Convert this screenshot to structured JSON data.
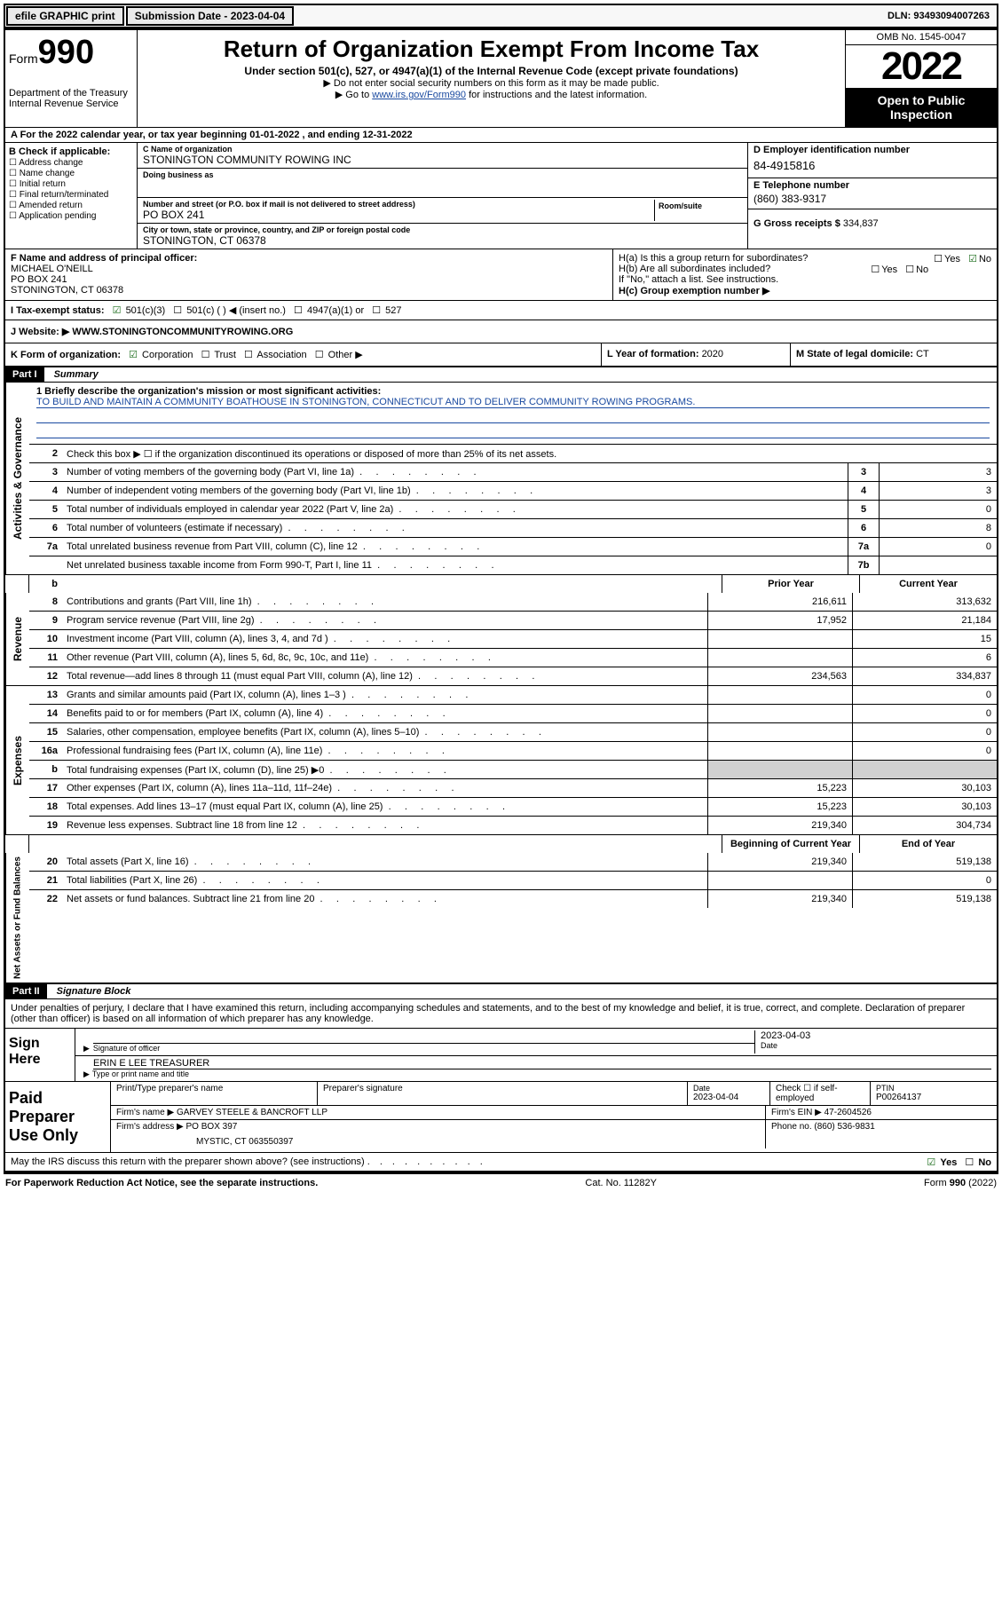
{
  "topbar": {
    "efile": "efile GRAPHIC print",
    "subdate_label": "Submission Date - ",
    "subdate": "2023-04-04",
    "dln_label": "DLN: ",
    "dln": "93493094007263"
  },
  "header": {
    "form_prefix": "Form",
    "form_number": "990",
    "dept": "Department of the Treasury\nInternal Revenue Service",
    "title": "Return of Organization Exempt From Income Tax",
    "subtitle": "Under section 501(c), 527, or 4947(a)(1) of the Internal Revenue Code (except private foundations)",
    "line1": "▶ Do not enter social security numbers on this form as it may be made public.",
    "line2_pre": "▶ Go to ",
    "line2_link": "www.irs.gov/Form990",
    "line2_post": " for instructions and the latest information.",
    "omb": "OMB No. 1545-0047",
    "year": "2022",
    "inspect": "Open to Public Inspection"
  },
  "rowA": "A For the 2022 calendar year, or tax year beginning 01-01-2022   , and ending 12-31-2022",
  "colB": {
    "header": "B Check if applicable:",
    "items": [
      "Address change",
      "Name change",
      "Initial return",
      "Final return/terminated",
      "Amended return",
      "Application pending"
    ]
  },
  "colC": {
    "name_label": "C Name of organization",
    "name": "STONINGTON COMMUNITY ROWING INC",
    "dba_label": "Doing business as",
    "dba": "",
    "addr_label": "Number and street (or P.O. box if mail is not delivered to street address)",
    "room_label": "Room/suite",
    "addr": "PO BOX 241",
    "city_label": "City or town, state or province, country, and ZIP or foreign postal code",
    "city": "STONINGTON, CT  06378"
  },
  "colD": {
    "ein_label": "D Employer identification number",
    "ein": "84-4915816",
    "phone_label": "E Telephone number",
    "phone": "(860) 383-9317",
    "gross_label": "G Gross receipts $ ",
    "gross": "334,837"
  },
  "secF": {
    "label": "F Name and address of principal officer:",
    "name": "MICHAEL O'NEILL",
    "addr1": "PO BOX 241",
    "addr2": "STONINGTON, CT  06378"
  },
  "secH": {
    "a": "H(a)  Is this a group return for subordinates?",
    "a_yes": "Yes",
    "a_no_checked": "No",
    "b": "H(b)  Are all subordinates included?",
    "b_yes": "Yes",
    "b_no": "No",
    "b_note": "If \"No,\" attach a list. See instructions.",
    "c": "H(c)  Group exemption number ▶"
  },
  "secI": {
    "label": "I   Tax-exempt status:",
    "opts": [
      "501(c)(3)",
      "501(c) (  ) ◀ (insert no.)",
      "4947(a)(1) or",
      "527"
    ]
  },
  "secJ": {
    "label": "J   Website: ▶ ",
    "value": "WWW.STONINGTONCOMMUNITYROWING.ORG"
  },
  "secK": {
    "label": "K Form of organization:",
    "opts": [
      "Corporation",
      "Trust",
      "Association",
      "Other ▶"
    ]
  },
  "secL": {
    "label": "L Year of formation: ",
    "value": "2020"
  },
  "secM": {
    "label": "M State of legal domicile: ",
    "value": "CT"
  },
  "part1": {
    "header": "Part I",
    "title": "Summary",
    "mission_label": "1   Briefly describe the organization's mission or most significant activities:",
    "mission": "TO BUILD AND MAINTAIN A COMMUNITY BOATHOUSE IN STONINGTON, CONNECTICUT AND TO DELIVER COMMUNITY ROWING PROGRAMS.",
    "line2": "Check this box ▶ ☐  if the organization discontinued its operations or disposed of more than 25% of its net assets."
  },
  "sidelabels": {
    "gov": "Activities & Governance",
    "rev": "Revenue",
    "exp": "Expenses",
    "net": "Net Assets or Fund Balances"
  },
  "gov_rows": [
    {
      "num": "3",
      "desc": "Number of voting members of the governing body (Part VI, line 1a)",
      "box": "3",
      "val": "3"
    },
    {
      "num": "4",
      "desc": "Number of independent voting members of the governing body (Part VI, line 1b)",
      "box": "4",
      "val": "3"
    },
    {
      "num": "5",
      "desc": "Total number of individuals employed in calendar year 2022 (Part V, line 2a)",
      "box": "5",
      "val": "0"
    },
    {
      "num": "6",
      "desc": "Total number of volunteers (estimate if necessary)",
      "box": "6",
      "val": "8"
    },
    {
      "num": "7a",
      "desc": "Total unrelated business revenue from Part VIII, column (C), line 12",
      "box": "7a",
      "val": "0"
    },
    {
      "num": "",
      "desc": "Net unrelated business taxable income from Form 990-T, Part I, line 11",
      "box": "7b",
      "val": ""
    }
  ],
  "twocol_header": {
    "prior": "Prior Year",
    "current": "Current Year"
  },
  "rev_rows": [
    {
      "num": "8",
      "desc": "Contributions and grants (Part VIII, line 1h)",
      "prior": "216,611",
      "cur": "313,632"
    },
    {
      "num": "9",
      "desc": "Program service revenue (Part VIII, line 2g)",
      "prior": "17,952",
      "cur": "21,184"
    },
    {
      "num": "10",
      "desc": "Investment income (Part VIII, column (A), lines 3, 4, and 7d )",
      "prior": "",
      "cur": "15"
    },
    {
      "num": "11",
      "desc": "Other revenue (Part VIII, column (A), lines 5, 6d, 8c, 9c, 10c, and 11e)",
      "prior": "",
      "cur": "6"
    },
    {
      "num": "12",
      "desc": "Total revenue—add lines 8 through 11 (must equal Part VIII, column (A), line 12)",
      "prior": "234,563",
      "cur": "334,837"
    }
  ],
  "exp_rows": [
    {
      "num": "13",
      "desc": "Grants and similar amounts paid (Part IX, column (A), lines 1–3 )",
      "prior": "",
      "cur": "0"
    },
    {
      "num": "14",
      "desc": "Benefits paid to or for members (Part IX, column (A), line 4)",
      "prior": "",
      "cur": "0"
    },
    {
      "num": "15",
      "desc": "Salaries, other compensation, employee benefits (Part IX, column (A), lines 5–10)",
      "prior": "",
      "cur": "0"
    },
    {
      "num": "16a",
      "desc": "Professional fundraising fees (Part IX, column (A), line 11e)",
      "prior": "",
      "cur": "0"
    },
    {
      "num": "b",
      "desc": "Total fundraising expenses (Part IX, column (D), line 25) ▶0",
      "prior": "GREY",
      "cur": "GREY"
    },
    {
      "num": "17",
      "desc": "Other expenses (Part IX, column (A), lines 11a–11d, 11f–24e)",
      "prior": "15,223",
      "cur": "30,103"
    },
    {
      "num": "18",
      "desc": "Total expenses. Add lines 13–17 (must equal Part IX, column (A), line 25)",
      "prior": "15,223",
      "cur": "30,103"
    },
    {
      "num": "19",
      "desc": "Revenue less expenses. Subtract line 18 from line 12",
      "prior": "219,340",
      "cur": "304,734"
    }
  ],
  "net_header": {
    "prior": "Beginning of Current Year",
    "current": "End of Year"
  },
  "net_rows": [
    {
      "num": "20",
      "desc": "Total assets (Part X, line 16)",
      "prior": "219,340",
      "cur": "519,138"
    },
    {
      "num": "21",
      "desc": "Total liabilities (Part X, line 26)",
      "prior": "",
      "cur": "0"
    },
    {
      "num": "22",
      "desc": "Net assets or fund balances. Subtract line 21 from line 20",
      "prior": "219,340",
      "cur": "519,138"
    }
  ],
  "part2": {
    "header": "Part II",
    "title": "Signature Block",
    "decl": "Under penalties of perjury, I declare that I have examined this return, including accompanying schedules and statements, and to the best of my knowledge and belief, it is true, correct, and complete. Declaration of preparer (other than officer) is based on all information of which preparer has any knowledge."
  },
  "sign": {
    "here": "Sign Here",
    "sig_label": "Signature of officer",
    "date_label": "Date",
    "date": "2023-04-03",
    "name_title": "ERIN E LEE  TREASURER",
    "name_label": "Type or print name and title"
  },
  "paid": {
    "label": "Paid Preparer Use Only",
    "col1": "Print/Type preparer's name",
    "col2": "Preparer's signature",
    "col3_label": "Date",
    "col3": "2023-04-04",
    "col4": "Check ☐ if self-employed",
    "col5_label": "PTIN",
    "col5": "P00264137",
    "firm_name_label": "Firm's name    ▶ ",
    "firm_name": "GARVEY STEELE & BANCROFT LLP",
    "firm_ein_label": "Firm's EIN ▶ ",
    "firm_ein": "47-2604526",
    "firm_addr_label": "Firm's address ▶ ",
    "firm_addr1": "PO BOX 397",
    "firm_addr2": "MYSTIC, CT  063550397",
    "phone_label": "Phone no. ",
    "phone": "(860) 536-9831"
  },
  "discuss": {
    "text": "May the IRS discuss this return with the preparer shown above? (see instructions)",
    "yes": "Yes",
    "no": "No"
  },
  "footer": {
    "left": "For Paperwork Reduction Act Notice, see the separate instructions.",
    "mid": "Cat. No. 11282Y",
    "right_pre": "Form ",
    "right_b": "990",
    "right_post": " (2022)"
  }
}
